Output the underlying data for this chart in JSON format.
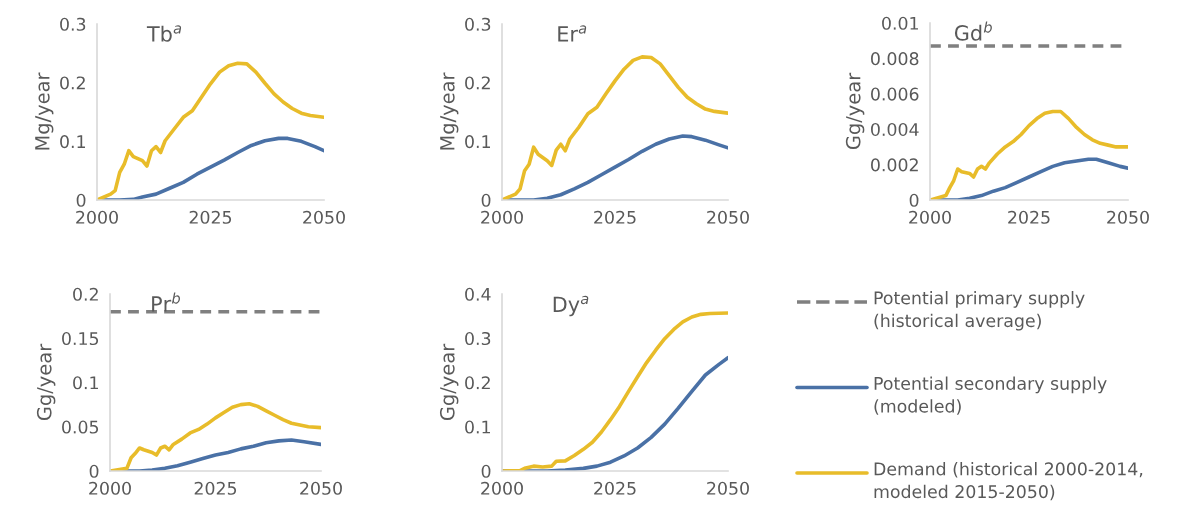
{
  "chart_data": [
    {
      "type": "line",
      "title": "Tb$^{a}$",
      "ylabel": "Mg/year",
      "xlim": [
        2000,
        2050
      ],
      "xticks": [
        2000,
        2025,
        2050
      ],
      "ylim": [
        0,
        0.3
      ],
      "yticks": [
        0,
        0.1,
        0.2,
        0.3
      ],
      "grid": false,
      "series": [
        {
          "color": "#4a71a6",
          "x": [
            2000,
            2005,
            2008,
            2010,
            2013,
            2016,
            2019,
            2022,
            2025,
            2028,
            2031,
            2034,
            2037,
            2040,
            2042,
            2045,
            2048,
            2050
          ],
          "values": [
            0,
            0,
            0.001,
            0.005,
            0.01,
            0.02,
            0.03,
            0.044,
            0.056,
            0.068,
            0.081,
            0.093,
            0.101,
            0.105,
            0.105,
            0.1,
            0.091,
            0.084
          ]
        },
        {
          "color": "#e8bc2a",
          "x": [
            2000,
            2003,
            2004,
            2005,
            2006,
            2007,
            2008,
            2010,
            2011,
            2012,
            2013,
            2014,
            2015,
            2017,
            2019,
            2021,
            2023,
            2025,
            2027,
            2029,
            2031,
            2033,
            2035,
            2037,
            2039,
            2041,
            2043,
            2045,
            2047,
            2050
          ],
          "values": [
            0,
            0.01,
            0.016,
            0.047,
            0.061,
            0.084,
            0.074,
            0.067,
            0.058,
            0.084,
            0.091,
            0.081,
            0.101,
            0.121,
            0.141,
            0.152,
            0.175,
            0.198,
            0.218,
            0.229,
            0.233,
            0.232,
            0.218,
            0.199,
            0.181,
            0.167,
            0.156,
            0.148,
            0.144,
            0.141
          ]
        }
      ]
    },
    {
      "type": "line",
      "title": "Er$^{a}$",
      "ylabel": "Mg/year",
      "xlim": [
        2000,
        2050
      ],
      "xticks": [
        2000,
        2025,
        2050
      ],
      "ylim": [
        0,
        0.3
      ],
      "yticks": [
        0,
        0.1,
        0.2,
        0.3
      ],
      "grid": false,
      "series": [
        {
          "color": "#4a71a6",
          "x": [
            2000,
            2007,
            2010,
            2013,
            2016,
            2019,
            2022,
            2025,
            2028,
            2031,
            2034,
            2037,
            2040,
            2042,
            2045,
            2048,
            2050
          ],
          "values": [
            0,
            0,
            0.003,
            0.009,
            0.019,
            0.03,
            0.043,
            0.056,
            0.069,
            0.083,
            0.095,
            0.104,
            0.109,
            0.108,
            0.102,
            0.094,
            0.089
          ]
        },
        {
          "color": "#e8bc2a",
          "x": [
            2000,
            2003,
            2004,
            2005,
            2006,
            2007,
            2008,
            2010,
            2011,
            2012,
            2013,
            2014,
            2015,
            2017,
            2019,
            2021,
            2023,
            2025,
            2027,
            2029,
            2031,
            2033,
            2035,
            2037,
            2039,
            2041,
            2043,
            2045,
            2047,
            2050
          ],
          "values": [
            0,
            0.01,
            0.019,
            0.05,
            0.061,
            0.09,
            0.078,
            0.067,
            0.059,
            0.085,
            0.095,
            0.084,
            0.104,
            0.124,
            0.147,
            0.158,
            0.181,
            0.203,
            0.223,
            0.238,
            0.244,
            0.243,
            0.232,
            0.212,
            0.192,
            0.175,
            0.164,
            0.155,
            0.151,
            0.148
          ]
        }
      ]
    },
    {
      "type": "line",
      "title": "Gd$^{b}$",
      "ylabel": "Gg/year",
      "xlim": [
        2000,
        2050
      ],
      "xticks": [
        2000,
        2025,
        2050
      ],
      "ylim": [
        0,
        0.01
      ],
      "yticks": [
        0,
        0.002,
        0.004,
        0.006,
        0.008,
        0.01
      ],
      "grid": false,
      "series": [
        {
          "color": "#808080",
          "line_style": "dashed",
          "x": [
            2000,
            2050
          ],
          "values": [
            0.0087,
            0.0087
          ]
        },
        {
          "color": "#4a71a6",
          "x": [
            2000,
            2007,
            2010,
            2013,
            2016,
            2019,
            2022,
            2025,
            2028,
            2031,
            2034,
            2037,
            2040,
            2042,
            2045,
            2048,
            2050
          ],
          "values": [
            0,
            0,
            0.0001,
            0.00025,
            0.0005,
            0.0007,
            0.001,
            0.0013,
            0.0016,
            0.0019,
            0.0021,
            0.0022,
            0.0023,
            0.0023,
            0.0021,
            0.0019,
            0.0018
          ]
        },
        {
          "color": "#e8bc2a",
          "x": [
            2000,
            2004,
            2005,
            2006,
            2007,
            2008,
            2010,
            2011,
            2012,
            2013,
            2014,
            2015,
            2017,
            2019,
            2021,
            2023,
            2025,
            2027,
            2029,
            2031,
            2033,
            2035,
            2037,
            2039,
            2041,
            2043,
            2045,
            2047,
            2050
          ],
          "values": [
            0,
            0.00025,
            0.0007,
            0.0011,
            0.00175,
            0.0016,
            0.0015,
            0.0013,
            0.00175,
            0.0019,
            0.00175,
            0.0021,
            0.0026,
            0.003,
            0.0033,
            0.0037,
            0.0042,
            0.0046,
            0.0049,
            0.005,
            0.005,
            0.0046,
            0.0041,
            0.0037,
            0.0034,
            0.0032,
            0.0031,
            0.003,
            0.003
          ]
        }
      ]
    },
    {
      "type": "line",
      "title": "Pr$^{b}$",
      "ylabel": "Gg/year",
      "xlim": [
        2000,
        2050
      ],
      "xticks": [
        2000,
        2025,
        2050
      ],
      "ylim": [
        0,
        0.2
      ],
      "yticks": [
        0,
        0.05,
        0.1,
        0.15,
        0.2
      ],
      "grid": false,
      "legend": "right",
      "series": [
        {
          "name": "Potential primary supply\n(historical average)",
          "color": "#808080",
          "line_style": "dashed",
          "x": [
            2000,
            2050
          ],
          "values": [
            0.18,
            0.18
          ]
        },
        {
          "name": "Potential secondary supply\n(modeled)",
          "color": "#4a71a6",
          "x": [
            2000,
            2007,
            2010,
            2013,
            2016,
            2019,
            2022,
            2025,
            2028,
            2031,
            2034,
            2037,
            2040,
            2043,
            2046,
            2050
          ],
          "values": [
            0,
            0,
            0.001,
            0.003,
            0.006,
            0.01,
            0.014,
            0.018,
            0.021,
            0.025,
            0.028,
            0.032,
            0.034,
            0.035,
            0.033,
            0.03
          ]
        },
        {
          "name": "Demand (historical 2000-2014,\nmodeled 2015-2050)",
          "color": "#e8bc2a",
          "x": [
            2000,
            2004,
            2005,
            2006,
            2007,
            2008,
            2010,
            2011,
            2012,
            2013,
            2014,
            2015,
            2017,
            2019,
            2021,
            2023,
            2025,
            2027,
            2029,
            2031,
            2033,
            2035,
            2037,
            2039,
            2041,
            2043,
            2045,
            2047,
            2050
          ],
          "values": [
            0,
            0.003,
            0.015,
            0.02,
            0.026,
            0.024,
            0.021,
            0.018,
            0.026,
            0.028,
            0.024,
            0.03,
            0.036,
            0.043,
            0.047,
            0.053,
            0.06,
            0.066,
            0.072,
            0.075,
            0.076,
            0.073,
            0.068,
            0.063,
            0.058,
            0.054,
            0.052,
            0.05,
            0.049
          ]
        }
      ]
    },
    {
      "type": "line",
      "title": "Dy$^{a}$",
      "ylabel": "Gg/year",
      "xlim": [
        2000,
        2050
      ],
      "xticks": [
        2000,
        2025,
        2050
      ],
      "ylim": [
        0,
        0.4
      ],
      "yticks": [
        0,
        0.1,
        0.2,
        0.3,
        0.4
      ],
      "grid": false,
      "series": [
        {
          "color": "#4a71a6",
          "x": [
            2000,
            2010,
            2014,
            2018,
            2021,
            2024,
            2027,
            2030,
            2033,
            2036,
            2039,
            2042,
            2045,
            2048,
            2050
          ],
          "values": [
            0,
            0,
            0.002,
            0.006,
            0.011,
            0.02,
            0.034,
            0.052,
            0.076,
            0.106,
            0.142,
            0.18,
            0.217,
            0.241,
            0.256
          ]
        },
        {
          "color": "#e8bc2a",
          "x": [
            2000,
            2004,
            2005,
            2007,
            2009,
            2011,
            2012,
            2014,
            2016,
            2018,
            2020,
            2022,
            2024,
            2026,
            2028,
            2030,
            2032,
            2034,
            2036,
            2038,
            2040,
            2042,
            2044,
            2046,
            2050
          ],
          "values": [
            0,
            0.001,
            0.006,
            0.011,
            0.009,
            0.011,
            0.022,
            0.023,
            0.035,
            0.049,
            0.065,
            0.088,
            0.116,
            0.146,
            0.18,
            0.213,
            0.245,
            0.273,
            0.299,
            0.32,
            0.337,
            0.348,
            0.354,
            0.356,
            0.357
          ]
        }
      ]
    }
  ]
}
